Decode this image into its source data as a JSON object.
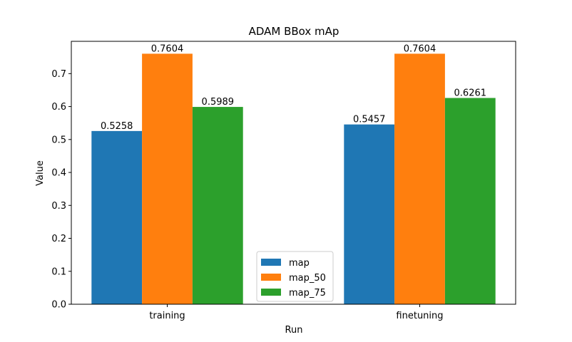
{
  "chart_data": {
    "type": "bar",
    "title": "ADAM BBox mAp",
    "xlabel": "Run",
    "ylabel": "Value",
    "categories": [
      "training",
      "finetuning"
    ],
    "series": [
      {
        "name": "map",
        "values": [
          0.5258,
          0.5457
        ],
        "labels": [
          "0.5258",
          "0.5457"
        ],
        "color": "#1f77b4"
      },
      {
        "name": "map_50",
        "values": [
          0.7604,
          0.7604
        ],
        "labels": [
          "0.7604",
          "0.7604"
        ],
        "color": "#ff7f0e"
      },
      {
        "name": "map_75",
        "values": [
          0.5989,
          0.6261
        ],
        "labels": [
          "0.5989",
          "0.6261"
        ],
        "color": "#2ca02c"
      }
    ],
    "ylim": [
      0,
      0.798
    ],
    "yticks": [
      0.0,
      0.1,
      0.2,
      0.3,
      0.4,
      0.5,
      0.6,
      0.7
    ],
    "ytick_labels": [
      "0.0",
      "0.1",
      "0.2",
      "0.3",
      "0.4",
      "0.5",
      "0.6",
      "0.7"
    ],
    "grid": false,
    "legend_position": "lower center"
  }
}
